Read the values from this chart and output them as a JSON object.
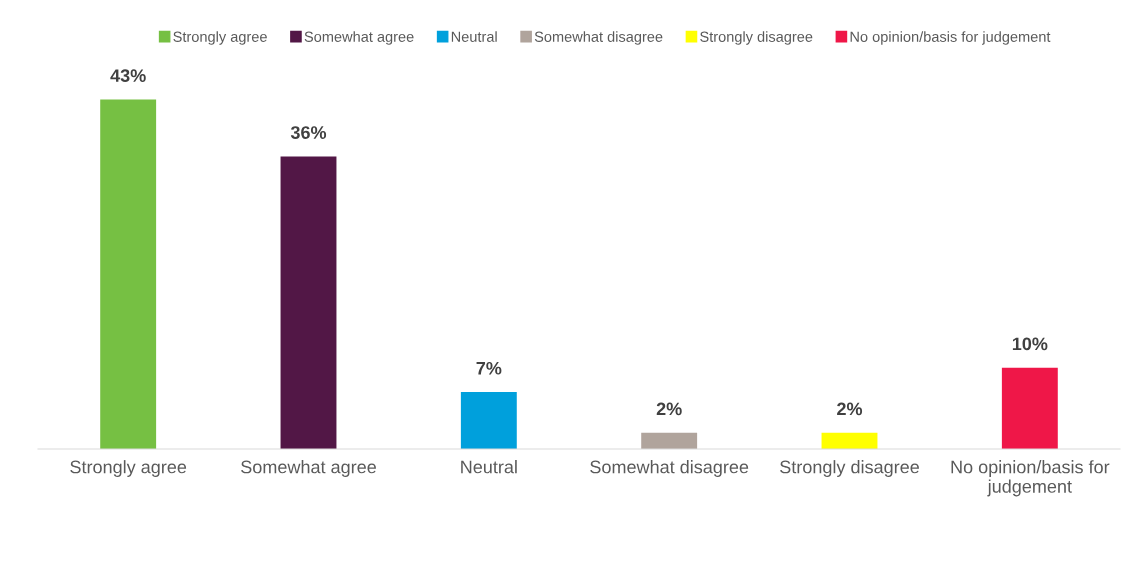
{
  "chart_data": {
    "type": "bar",
    "categories": [
      "Strongly agree",
      "Somewhat agree",
      "Neutral",
      "Somewhat disagree",
      "Strongly disagree",
      "No opinion/basis for\njudgement"
    ],
    "series": [
      {
        "name": "Strongly agree",
        "color": "#76c043",
        "values": [
          43,
          null,
          null,
          null,
          null,
          null
        ],
        "value_labels": [
          "43%",
          null,
          null,
          null,
          null,
          null
        ]
      },
      {
        "name": "Somewhat agree",
        "color": "#521746",
        "values": [
          null,
          36,
          null,
          null,
          null,
          null
        ],
        "value_labels": [
          null,
          "36%",
          null,
          null,
          null,
          null
        ]
      },
      {
        "name": "Neutral",
        "color": "#00a0dc",
        "values": [
          null,
          null,
          7,
          null,
          null,
          null
        ],
        "value_labels": [
          null,
          null,
          "7%",
          null,
          null,
          null
        ]
      },
      {
        "name": "Somewhat disagree",
        "color": "#b0a49c",
        "values": [
          null,
          null,
          null,
          2,
          null,
          null
        ],
        "value_labels": [
          null,
          null,
          null,
          "2%",
          null,
          null
        ]
      },
      {
        "name": "Strongly disagree",
        "color": "#ffff00",
        "values": [
          null,
          null,
          null,
          null,
          2,
          null
        ],
        "value_labels": [
          null,
          null,
          null,
          null,
          "2%",
          null
        ]
      },
      {
        "name": "No opinion/basis for judgement",
        "color": "#ef1748",
        "values": [
          null,
          null,
          null,
          null,
          null,
          10
        ],
        "value_labels": [
          null,
          null,
          null,
          null,
          null,
          "10%"
        ]
      }
    ],
    "tick_labels": "x",
    "grid": false,
    "legend": "top"
  }
}
